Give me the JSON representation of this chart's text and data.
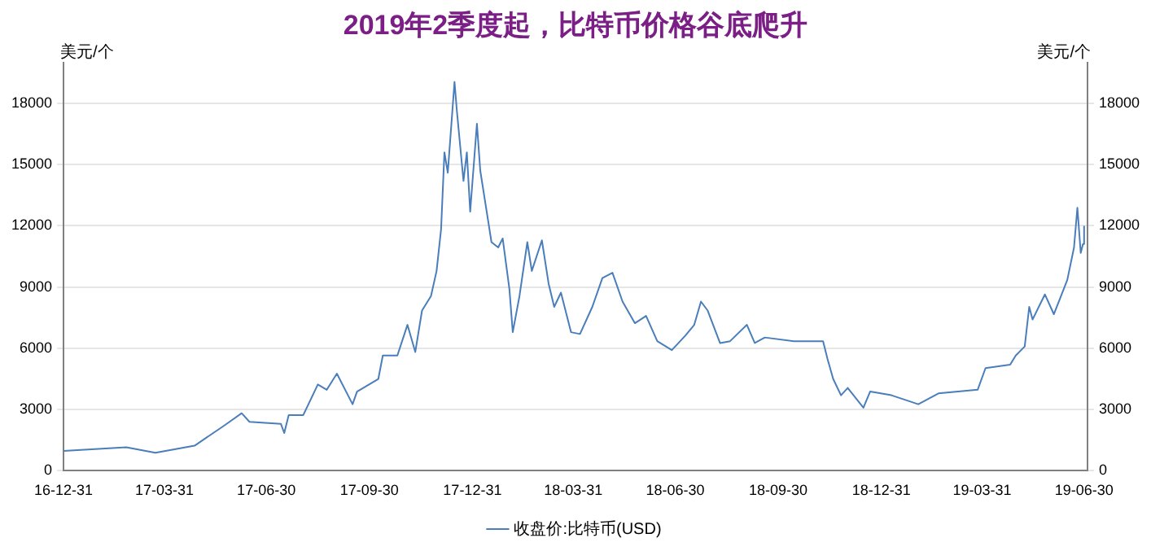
{
  "chart_data": {
    "type": "line",
    "title": "2019年2季度起，比特币价格谷底爬升",
    "ylabel": "美元/个",
    "y2label": "美元/个",
    "x": [
      "2016-12-31",
      "2017-02-25",
      "2017-03-23",
      "2017-04-27",
      "2017-05-23",
      "2017-06-08",
      "2017-06-15",
      "2017-07-13",
      "2017-07-16",
      "2017-07-20",
      "2017-08-02",
      "2017-08-15",
      "2017-08-23",
      "2017-09-01",
      "2017-09-15",
      "2017-09-19",
      "2017-10-08",
      "2017-10-12",
      "2017-10-25",
      "2017-11-03",
      "2017-11-10",
      "2017-11-16",
      "2017-11-24",
      "2017-11-29",
      "2017-12-03",
      "2017-12-06",
      "2017-12-09",
      "2017-12-15",
      "2017-12-17",
      "2017-12-23",
      "2017-12-26",
      "2017-12-29",
      "2018-01-04",
      "2018-01-07",
      "2018-01-17",
      "2018-01-23",
      "2018-01-27",
      "2018-02-02",
      "2018-02-05",
      "2018-02-11",
      "2018-02-18",
      "2018-02-22",
      "2018-03-03",
      "2018-03-09",
      "2018-03-14",
      "2018-03-20",
      "2018-03-29",
      "2018-04-06",
      "2018-04-17",
      "2018-04-26",
      "2018-05-05",
      "2018-05-14",
      "2018-05-25",
      "2018-06-04",
      "2018-06-14",
      "2018-06-27",
      "2018-07-09",
      "2018-07-17",
      "2018-07-23",
      "2018-07-29",
      "2018-08-09",
      "2018-08-18",
      "2018-09-02",
      "2018-09-09",
      "2018-09-18",
      "2018-10-14",
      "2018-11-09",
      "2018-11-13",
      "2018-11-18",
      "2018-11-25",
      "2018-12-01",
      "2018-12-15",
      "2018-12-21",
      "2019-01-09",
      "2019-02-02",
      "2019-02-20",
      "2019-03-27",
      "2019-04-03",
      "2019-04-25",
      "2019-04-30",
      "2019-05-08",
      "2019-05-12",
      "2019-05-15",
      "2019-05-26",
      "2019-06-03",
      "2019-06-15",
      "2019-06-21",
      "2019-06-24",
      "2019-06-27",
      "2019-06-29",
      "2019-06-30"
    ],
    "series": [
      {
        "name": "收盘价:比特币(USD)",
        "color": "#4a7ebb",
        "values": [
          970,
          1150,
          880,
          1230,
          2200,
          2820,
          2400,
          2300,
          1850,
          2730,
          2730,
          4230,
          3970,
          4760,
          3260,
          3880,
          4500,
          5650,
          5650,
          7150,
          5820,
          7850,
          8560,
          9790,
          11820,
          15600,
          14600,
          19050,
          17700,
          14200,
          15600,
          12700,
          17000,
          14700,
          11200,
          10940,
          11380,
          8900,
          6790,
          8560,
          11200,
          9790,
          11290,
          9170,
          8030,
          8730,
          6790,
          6700,
          8030,
          9440,
          9700,
          8290,
          7230,
          7590,
          6350,
          5910,
          6620,
          7150,
          8290,
          7850,
          6260,
          6350,
          7150,
          6260,
          6530,
          6350,
          6350,
          5470,
          4500,
          3700,
          4060,
          3090,
          3880,
          3700,
          3260,
          3790,
          3970,
          5030,
          5200,
          5650,
          6090,
          8030,
          7410,
          8640,
          7670,
          9350,
          10940,
          12880,
          10670,
          11110,
          12000
        ]
      }
    ],
    "xlim": [
      "2016-12-31",
      "2019-07-03"
    ],
    "xticks": [
      {
        "value": "2016-12-31",
        "label": "16-12-31"
      },
      {
        "value": "2017-03-31",
        "label": "17-03-31"
      },
      {
        "value": "2017-06-30",
        "label": "17-06-30"
      },
      {
        "value": "2017-09-30",
        "label": "17-09-30"
      },
      {
        "value": "2017-12-31",
        "label": "17-12-31"
      },
      {
        "value": "2018-03-31",
        "label": "18-03-31"
      },
      {
        "value": "2018-06-30",
        "label": "18-06-30"
      },
      {
        "value": "2018-09-30",
        "label": "18-09-30"
      },
      {
        "value": "2018-12-31",
        "label": "18-12-31"
      },
      {
        "value": "2019-03-31",
        "label": "19-03-31"
      },
      {
        "value": "2019-06-30",
        "label": "19-06-30"
      }
    ],
    "ylim": [
      0,
      20000
    ],
    "yticks": [
      0,
      3000,
      6000,
      9000,
      12000,
      15000,
      18000
    ],
    "y2lim": [
      0,
      20000
    ],
    "y2ticks": [
      0,
      3000,
      6000,
      9000,
      12000,
      15000,
      18000
    ],
    "grid": "y",
    "legend": "bottom",
    "marker": "none",
    "line_style": "solid"
  }
}
